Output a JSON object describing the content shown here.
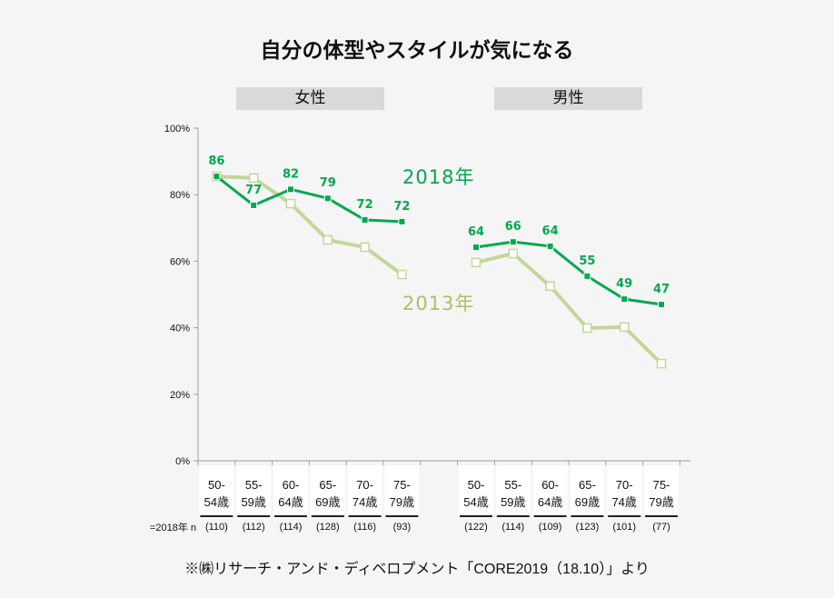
{
  "title": "自分の体型やスタイルが気になる",
  "panels": {
    "female": "女性",
    "male": "男性"
  },
  "source": "※㈱リサーチ・アンド・ディベロプメント「CORE2019（18.10）」より",
  "n_label": "2018年 n=",
  "chart_data": {
    "type": "line",
    "ylim": [
      0,
      100
    ],
    "yticks": [
      "0%",
      "20%",
      "40%",
      "60%",
      "80%",
      "100%"
    ],
    "groups": [
      {
        "name": "女性",
        "categories": [
          "50-\n54歳",
          "55-\n59歳",
          "60-\n64歳",
          "65-\n69歳",
          "70-\n74歳",
          "75-\n79歳"
        ],
        "n": [
          "(110)",
          "(112)",
          "(114)",
          "(128)",
          "(116)",
          "(93)"
        ],
        "series": [
          {
            "name": "2018年",
            "values": [
              86,
              77,
              82,
              79,
              72,
              72
            ],
            "plot": [
              85.5,
              76.8,
              81.6,
              78.9,
              72.4,
              71.9
            ]
          },
          {
            "name": "2013年",
            "values": [
              85.5,
              85,
              77.3,
              66.4,
              64.2,
              56
            ]
          }
        ]
      },
      {
        "name": "男性",
        "categories": [
          "50-\n54歳",
          "55-\n59歳",
          "60-\n64歳",
          "65-\n69歳",
          "70-\n74歳",
          "75-\n79歳"
        ],
        "n": [
          "(122)",
          "(114)",
          "(109)",
          "(123)",
          "(101)",
          "(77)"
        ],
        "series": [
          {
            "name": "2018年",
            "values": [
              64,
              66,
              64,
              55,
              49,
              47
            ],
            "plot": [
              64.2,
              65.8,
              64.5,
              55.5,
              48.6,
              47
            ]
          },
          {
            "name": "2013年",
            "values": [
              59.6,
              62.3,
              52.5,
              39.9,
              40.2,
              29.2
            ]
          }
        ]
      }
    ],
    "series_labels": {
      "s2018": "2018年",
      "s2013": "2013年"
    },
    "colors": {
      "s2018": "#00a84f",
      "s2013": "#c3d69b",
      "axis": "#a0a0a0"
    }
  }
}
